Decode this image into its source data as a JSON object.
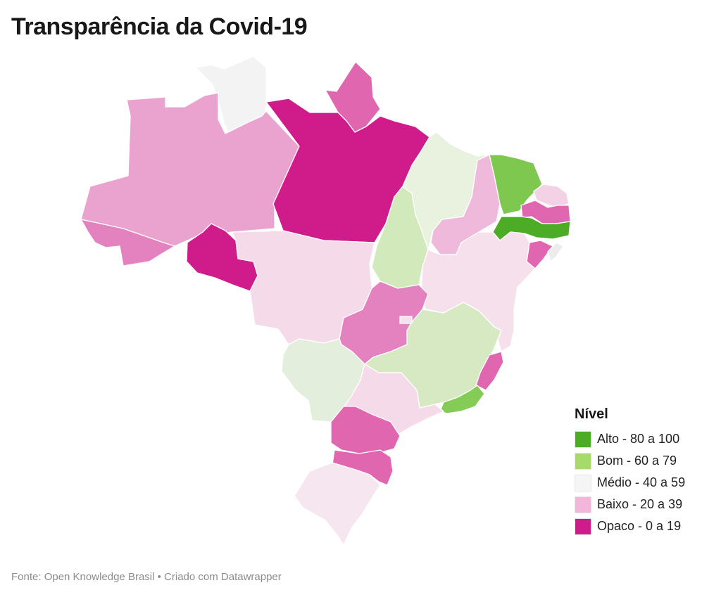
{
  "title": "Transparência da Covid-19",
  "legend": {
    "title": "Nível",
    "items": [
      {
        "label": "Alto - 80 a 100",
        "color": "#4dac26"
      },
      {
        "label": "Bom - 60 a 79",
        "color": "#a6db6b"
      },
      {
        "label": "Médio - 40 a 59",
        "color": "#f5f5f5"
      },
      {
        "label": "Baixo - 20 a 39",
        "color": "#f1b6da"
      },
      {
        "label": "Opaco - 0 a 19",
        "color": "#d01c8b"
      }
    ]
  },
  "states": [
    {
      "id": "RR",
      "color": "#f3f3f3"
    },
    {
      "id": "AP",
      "color": "#e066b0"
    },
    {
      "id": "AM",
      "color": "#eaa3cf"
    },
    {
      "id": "AC",
      "color": "#e482c0"
    },
    {
      "id": "PA",
      "color": "#d01c8b"
    },
    {
      "id": "RO",
      "color": "#d01c8b"
    },
    {
      "id": "MT",
      "color": "#f5dae9"
    },
    {
      "id": "TO",
      "color": "#d1e9bb"
    },
    {
      "id": "MA",
      "color": "#e8f2df"
    },
    {
      "id": "PI",
      "color": "#efb9dc"
    },
    {
      "id": "CE",
      "color": "#7ec84f"
    },
    {
      "id": "RN",
      "color": "#f4d2e6"
    },
    {
      "id": "PB",
      "color": "#e066b0"
    },
    {
      "id": "PE",
      "color": "#4dac26"
    },
    {
      "id": "AL",
      "color": "#e066b0"
    },
    {
      "id": "SE",
      "color": "#ececec"
    },
    {
      "id": "BA",
      "color": "#f5e0ec"
    },
    {
      "id": "GO",
      "color": "#e482c0"
    },
    {
      "id": "DF",
      "color": "#f5e0ec"
    },
    {
      "id": "MG",
      "color": "#d6e9c2"
    },
    {
      "id": "ES",
      "color": "#e066b0"
    },
    {
      "id": "RJ",
      "color": "#84cc55"
    },
    {
      "id": "MS",
      "color": "#e4eedd"
    },
    {
      "id": "SP",
      "color": "#f5dae9"
    },
    {
      "id": "PR",
      "color": "#e066b0"
    },
    {
      "id": "SC",
      "color": "#e066b0"
    },
    {
      "id": "RS",
      "color": "#f5e6ef"
    }
  ],
  "source": "Fonte: Open Knowledge Brasil • Criado com Datawrapper"
}
